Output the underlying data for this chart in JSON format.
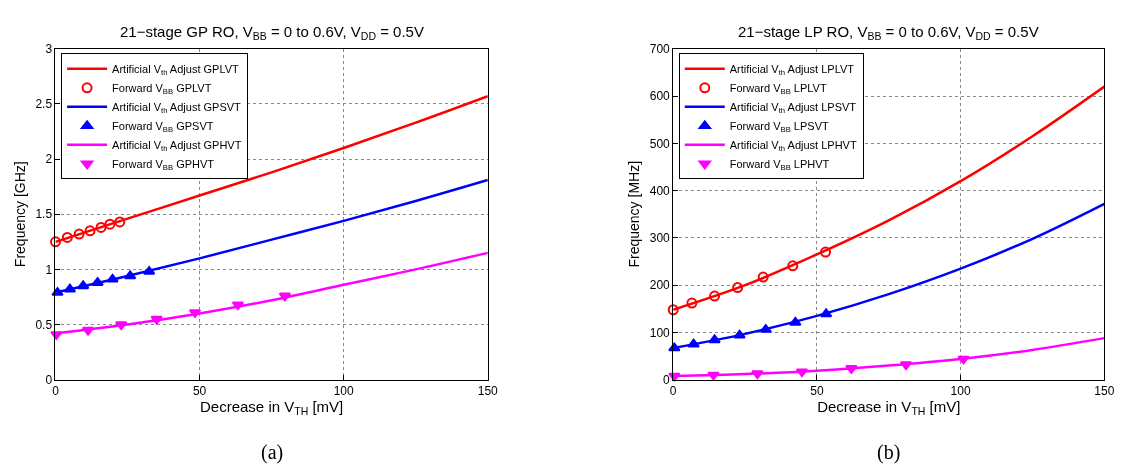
{
  "chart_data": [
    {
      "type": "line",
      "title": "21−stage GP RO, V$_{BB}$ = 0 to 0.6V, V$_{DD}$ = 0.5V",
      "xlabel": "Decrease in V$_{TH}$ [mV]",
      "ylabel": "Frequency [GHz]",
      "xlim": [
        0,
        150
      ],
      "xticks": [
        0,
        50,
        100,
        150
      ],
      "ylim": [
        0,
        3
      ],
      "yticks": [
        0,
        0.5,
        1,
        1.5,
        2,
        2.5,
        3
      ],
      "grid": true,
      "legend": "top left",
      "line_style": "solid",
      "annotations": [
        "(a)"
      ],
      "series": [
        {
          "name": "Artificial V$_{th}$ Adjust GPLVT",
          "color": "#ff0000",
          "marker": "none",
          "x": [
            0,
            25,
            50,
            75,
            100,
            125,
            150
          ],
          "values": [
            1.25,
            1.46,
            1.67,
            1.88,
            2.1,
            2.33,
            2.57
          ]
        },
        {
          "name": "Forward V$_{BB}$ GPLVT",
          "type": "scatter",
          "color": "#ff0000",
          "marker": "circle",
          "x": [
            0,
            4.1,
            8.2,
            12,
            15.8,
            18.9,
            22.3
          ],
          "values": [
            1.25,
            1.29,
            1.32,
            1.35,
            1.38,
            1.41,
            1.43
          ]
        },
        {
          "name": "Artificial V$_{th}$ Adjust GPSVT",
          "color": "#0000ff",
          "marker": "none",
          "x": [
            0,
            25,
            50,
            75,
            100,
            125,
            150
          ],
          "values": [
            0.79,
            0.94,
            1.1,
            1.27,
            1.44,
            1.62,
            1.81
          ]
        },
        {
          "name": "Forward V$_{BB}$ GPSVT",
          "type": "scatter",
          "color": "#0000ff",
          "marker": "triangle",
          "x": [
            0.7,
            5,
            9.6,
            14.6,
            19.8,
            25.9,
            32.5
          ],
          "values": [
            0.79,
            0.82,
            0.85,
            0.88,
            0.91,
            0.94,
            0.98
          ]
        },
        {
          "name": "Artificial V$_{th}$ Adjust GPHVT",
          "color": "#ff00ff",
          "marker": "none",
          "x": [
            0,
            25,
            50,
            75,
            100,
            125,
            150
          ],
          "values": [
            0.42,
            0.5,
            0.6,
            0.72,
            0.86,
            1.0,
            1.15
          ]
        },
        {
          "name": "Forward V$_{BB}$ GPHVT",
          "type": "scatter",
          "color": "#ff00ff",
          "marker": "triangle-down",
          "x": [
            0.3,
            11.3,
            22.8,
            35.1,
            48.4,
            63.3,
            79.6
          ],
          "values": [
            0.41,
            0.45,
            0.5,
            0.55,
            0.61,
            0.68,
            0.76
          ]
        }
      ]
    },
    {
      "type": "line",
      "title": "21−stage LP RO, V$_{BB}$ = 0 to 0.6V, V$_{DD}$ = 0.5V",
      "xlabel": "Decrease in V$_{TH}$ [mV]",
      "ylabel": "Frequency [MHz]",
      "xlim": [
        0,
        150
      ],
      "xticks": [
        0,
        50,
        100,
        150
      ],
      "ylim": [
        0,
        700
      ],
      "yticks": [
        0,
        100,
        200,
        300,
        400,
        500,
        600,
        700
      ],
      "grid": true,
      "legend": "top left",
      "line_style": "solid",
      "annotations": [
        "(b)"
      ],
      "series": [
        {
          "name": "Artificial V$_{th}$ Adjust LPLVT",
          "color": "#ff0000",
          "marker": "none",
          "x": [
            0,
            25,
            50,
            75,
            100,
            125,
            150
          ],
          "values": [
            148,
            200,
            265,
            337,
            420,
            515,
            620
          ]
        },
        {
          "name": "Forward V$_{BB}$ LPLVT",
          "type": "scatter",
          "color": "#ff0000",
          "marker": "circle",
          "x": [
            0,
            6.5,
            14.4,
            22.4,
            31.3,
            41.6,
            53
          ],
          "values": [
            148,
            162,
            177,
            195,
            217,
            241,
            270
          ]
        },
        {
          "name": "Artificial V$_{th}$ Adjust LPSVT",
          "color": "#0000ff",
          "marker": "none",
          "x": [
            0,
            25,
            50,
            75,
            100,
            125,
            150
          ],
          "values": [
            67,
            97,
            135,
            181,
            235,
            298,
            372
          ]
        },
        {
          "name": "Forward V$_{BB}$ LPSVT",
          "type": "scatter",
          "color": "#0000ff",
          "marker": "triangle",
          "x": [
            0.4,
            7.1,
            14.4,
            23.1,
            32.2,
            42.5,
            53.2
          ],
          "values": [
            67,
            75,
            84,
            94,
            106,
            121,
            139
          ]
        },
        {
          "name": "Artificial V$_{th}$ Adjust LPHVT",
          "color": "#ff00ff",
          "marker": "none",
          "x": [
            0,
            25,
            50,
            75,
            100,
            125,
            150
          ],
          "values": [
            8,
            12,
            19,
            30,
            44,
            63,
            88
          ]
        },
        {
          "name": "Forward V$_{BB}$ LPHVT",
          "type": "scatter",
          "color": "#ff00ff",
          "marker": "triangle-down",
          "x": [
            0.4,
            14,
            29.3,
            44.8,
            62,
            81,
            101
          ],
          "values": [
            8,
            10,
            13,
            17,
            24,
            32,
            44
          ]
        }
      ]
    }
  ]
}
